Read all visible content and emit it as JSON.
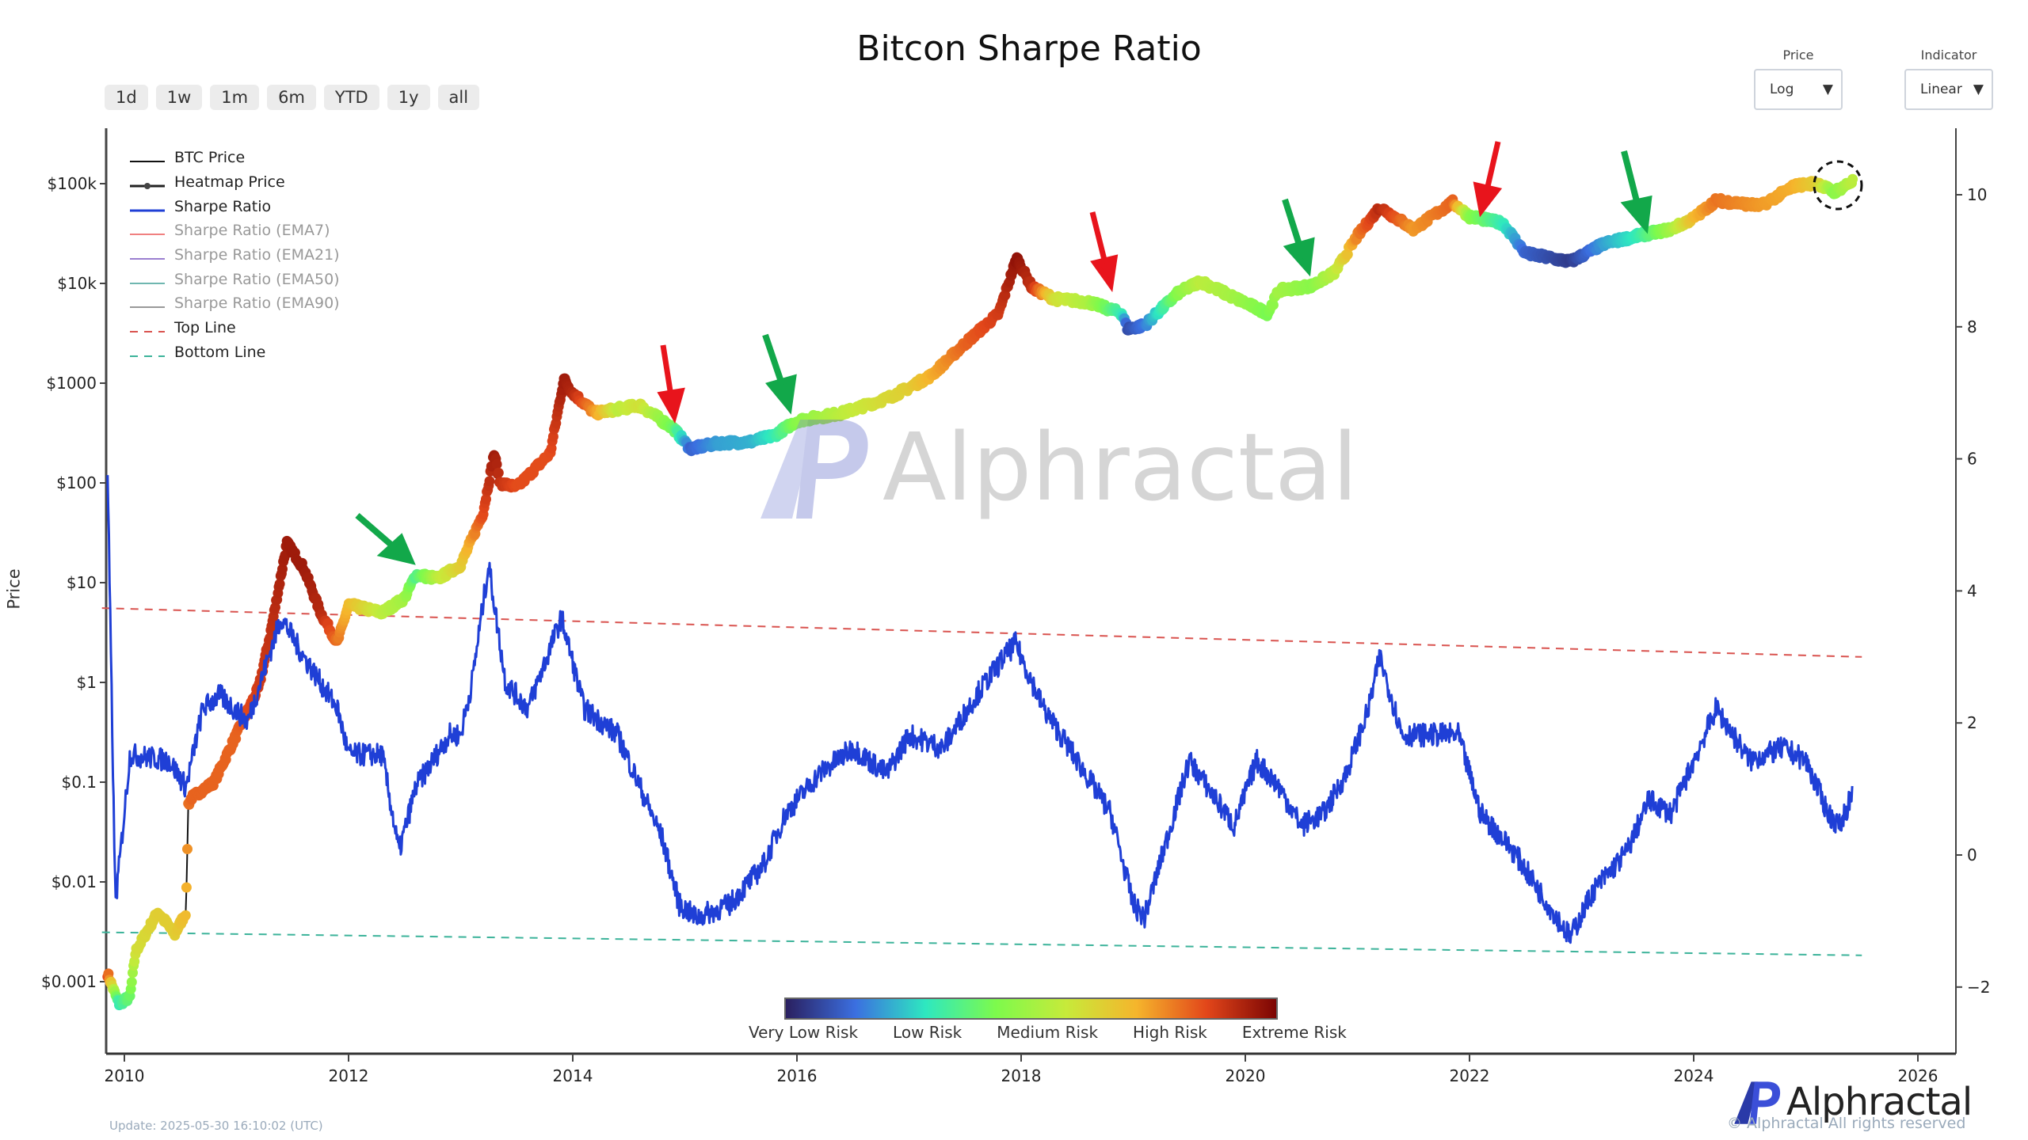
{
  "header": {
    "title": "Bitcon Sharpe Ratio"
  },
  "range_buttons": [
    "1d",
    "1w",
    "1m",
    "6m",
    "YTD",
    "1y",
    "all"
  ],
  "controls": {
    "price": {
      "label": "Price",
      "value": "Log"
    },
    "indicator": {
      "label": "Indicator",
      "value": "Linear"
    }
  },
  "legend": [
    {
      "label": "BTC Price",
      "color": "#111111",
      "style": "solid",
      "active": true
    },
    {
      "label": "Heatmap Price",
      "color": "#222222",
      "style": "marker",
      "active": true
    },
    {
      "label": "Sharpe Ratio",
      "color": "#1f3fd6",
      "style": "solid",
      "active": true
    },
    {
      "label": "Sharpe Ratio (EMA7)",
      "color": "#f08080",
      "style": "solid",
      "active": false
    },
    {
      "label": "Sharpe Ratio (EMA21)",
      "color": "#9b7fd0",
      "style": "solid",
      "active": false
    },
    {
      "label": "Sharpe Ratio (EMA50)",
      "color": "#6fb7b0",
      "style": "solid",
      "active": false
    },
    {
      "label": "Sharpe Ratio (EMA90)",
      "color": "#999999",
      "style": "solid",
      "active": false
    },
    {
      "label": "Top Line",
      "color": "#d9534f",
      "style": "dash",
      "active": true
    },
    {
      "label": "Bottom Line",
      "color": "#3cb39a",
      "style": "dash",
      "active": true
    }
  ],
  "footer": {
    "update": "Update: 2025-05-30 16:10:02 (UTC)",
    "copyright": "© Alphractal All rights reserved",
    "brand": "Alphractal"
  },
  "chart_data": {
    "type": "line",
    "title": "Bitcon Sharpe Ratio",
    "ylabel": "Price",
    "y_left": {
      "scale": "log",
      "ticks": [
        "$0.001",
        "$0.01",
        "$0.1",
        "$1",
        "$10",
        "$100",
        "$1000",
        "$10k",
        "$100k"
      ],
      "tick_values": [
        0.001,
        0.01,
        0.1,
        1,
        10,
        100,
        1000,
        10000,
        100000
      ]
    },
    "y_right": {
      "scale": "linear",
      "ticks": [
        "−2",
        "0",
        "2",
        "4",
        "6",
        "8",
        "10"
      ],
      "tick_values": [
        -2,
        0,
        2,
        4,
        6,
        8,
        10
      ]
    },
    "x_ticks": [
      "2010",
      "2012",
      "2014",
      "2016",
      "2018",
      "2020",
      "2022",
      "2024",
      "2026"
    ],
    "x_tick_values": [
      2010,
      2012,
      2014,
      2016,
      2018,
      2020,
      2022,
      2024,
      2026
    ],
    "colorbar_labels": [
      "Very Low Risk",
      "Low Risk",
      "Medium Risk",
      "High Risk",
      "Extreme Risk"
    ],
    "colorscale": [
      "#2a1f5e",
      "#3b6fe0",
      "#2ee8c0",
      "#7dfa4c",
      "#c7ea3a",
      "#f5b52c",
      "#e2461a",
      "#7a0403"
    ],
    "price_series": {
      "name": "BTC Price / Heatmap Price",
      "points": [
        [
          2009.85,
          0.0012,
          0.85
        ],
        [
          2009.95,
          0.0006,
          0.3
        ],
        [
          2010.05,
          0.0007,
          0.4
        ],
        [
          2010.1,
          0.002,
          0.6
        ],
        [
          2010.3,
          0.005,
          0.65
        ],
        [
          2010.45,
          0.003,
          0.65
        ],
        [
          2010.55,
          0.005,
          0.7
        ],
        [
          2010.57,
          0.06,
          0.8
        ],
        [
          2010.6,
          0.07,
          0.82
        ],
        [
          2010.8,
          0.1,
          0.82
        ],
        [
          2011.0,
          0.3,
          0.82
        ],
        [
          2011.2,
          0.9,
          0.88
        ],
        [
          2011.3,
          3,
          0.9
        ],
        [
          2011.45,
          25,
          0.95
        ],
        [
          2011.6,
          14,
          0.95
        ],
        [
          2011.75,
          5,
          0.92
        ],
        [
          2011.9,
          2.5,
          0.8
        ],
        [
          2012.0,
          6,
          0.7
        ],
        [
          2012.3,
          5,
          0.55
        ],
        [
          2012.5,
          7,
          0.5
        ],
        [
          2012.6,
          12,
          0.35
        ],
        [
          2012.8,
          11,
          0.55
        ],
        [
          2013.0,
          15,
          0.65
        ],
        [
          2013.2,
          50,
          0.85
        ],
        [
          2013.3,
          200,
          0.95
        ],
        [
          2013.35,
          100,
          0.9
        ],
        [
          2013.5,
          90,
          0.85
        ],
        [
          2013.8,
          200,
          0.85
        ],
        [
          2013.92,
          1100,
          0.95
        ],
        [
          2014.0,
          800,
          0.92
        ],
        [
          2014.2,
          500,
          0.75
        ],
        [
          2014.4,
          550,
          0.55
        ],
        [
          2014.6,
          600,
          0.6
        ],
        [
          2014.9,
          350,
          0.4
        ],
        [
          2015.05,
          220,
          0.12
        ],
        [
          2015.3,
          250,
          0.2
        ],
        [
          2015.6,
          260,
          0.22
        ],
        [
          2015.8,
          300,
          0.3
        ],
        [
          2016.0,
          420,
          0.45
        ],
        [
          2016.4,
          500,
          0.55
        ],
        [
          2016.8,
          700,
          0.62
        ],
        [
          2017.0,
          900,
          0.65
        ],
        [
          2017.2,
          1200,
          0.72
        ],
        [
          2017.5,
          2500,
          0.82
        ],
        [
          2017.8,
          5000,
          0.88
        ],
        [
          2017.96,
          18000,
          0.97
        ],
        [
          2018.1,
          9000,
          0.9
        ],
        [
          2018.3,
          7000,
          0.6
        ],
        [
          2018.6,
          6500,
          0.52
        ],
        [
          2018.9,
          5000,
          0.3
        ],
        [
          2018.95,
          3500,
          0.08
        ],
        [
          2019.1,
          3800,
          0.15
        ],
        [
          2019.4,
          8000,
          0.45
        ],
        [
          2019.6,
          10500,
          0.55
        ],
        [
          2019.9,
          7200,
          0.5
        ],
        [
          2020.2,
          5000,
          0.42
        ],
        [
          2020.3,
          8500,
          0.5
        ],
        [
          2020.6,
          9500,
          0.45
        ],
        [
          2020.8,
          13000,
          0.55
        ],
        [
          2021.0,
          30000,
          0.78
        ],
        [
          2021.2,
          58000,
          0.92
        ],
        [
          2021.5,
          35000,
          0.75
        ],
        [
          2021.85,
          65000,
          0.82
        ],
        [
          2022.0,
          47000,
          0.45
        ],
        [
          2022.3,
          40000,
          0.3
        ],
        [
          2022.5,
          20000,
          0.12
        ],
        [
          2022.9,
          16500,
          0.05
        ],
        [
          2023.2,
          25000,
          0.2
        ],
        [
          2023.5,
          30000,
          0.3
        ],
        [
          2023.8,
          35000,
          0.5
        ],
        [
          2024.0,
          45000,
          0.7
        ],
        [
          2024.2,
          68000,
          0.8
        ],
        [
          2024.6,
          60000,
          0.75
        ],
        [
          2024.9,
          95000,
          0.72
        ],
        [
          2025.1,
          102000,
          0.65
        ],
        [
          2025.25,
          82000,
          0.45
        ],
        [
          2025.42,
          106000,
          0.55
        ]
      ]
    },
    "sharpe_series": {
      "name": "Sharpe Ratio",
      "points": [
        [
          2009.85,
          5.8
        ],
        [
          2009.92,
          -0.75
        ],
        [
          2010.05,
          1.52
        ],
        [
          2010.4,
          1.43
        ],
        [
          2010.55,
          1.03
        ],
        [
          2010.7,
          2.22
        ],
        [
          2010.85,
          2.42
        ],
        [
          2011.1,
          2.02
        ],
        [
          2011.4,
          3.6
        ],
        [
          2011.6,
          3.0
        ],
        [
          2011.9,
          2.22
        ],
        [
          2012.0,
          1.52
        ],
        [
          2012.3,
          1.52
        ],
        [
          2012.45,
          0.04
        ],
        [
          2012.6,
          1.03
        ],
        [
          2012.9,
          1.82
        ],
        [
          2013.0,
          1.82
        ],
        [
          2013.1,
          2.61
        ],
        [
          2013.25,
          4.4
        ],
        [
          2013.4,
          2.61
        ],
        [
          2013.6,
          2.22
        ],
        [
          2013.9,
          3.6
        ],
        [
          2014.1,
          2.22
        ],
        [
          2014.4,
          1.82
        ],
        [
          2014.6,
          1.03
        ],
        [
          2014.8,
          0.24
        ],
        [
          2014.95,
          -0.75
        ],
        [
          2015.1,
          -0.95
        ],
        [
          2015.4,
          -0.75
        ],
        [
          2015.7,
          -0.16
        ],
        [
          2015.9,
          0.63
        ],
        [
          2016.2,
          1.23
        ],
        [
          2016.5,
          1.62
        ],
        [
          2016.8,
          1.23
        ],
        [
          2017.0,
          1.82
        ],
        [
          2017.3,
          1.62
        ],
        [
          2017.6,
          2.42
        ],
        [
          2017.85,
          3.0
        ],
        [
          2017.95,
          3.2
        ],
        [
          2018.2,
          2.22
        ],
        [
          2018.5,
          1.43
        ],
        [
          2018.8,
          0.63
        ],
        [
          2019.0,
          -0.75
        ],
        [
          2019.1,
          -0.95
        ],
        [
          2019.3,
          0.24
        ],
        [
          2019.5,
          1.43
        ],
        [
          2019.9,
          0.44
        ],
        [
          2020.1,
          1.43
        ],
        [
          2020.3,
          1.03
        ],
        [
          2020.5,
          0.44
        ],
        [
          2020.7,
          0.63
        ],
        [
          2020.9,
          1.23
        ],
        [
          2021.1,
          2.22
        ],
        [
          2021.2,
          3.0
        ],
        [
          2021.4,
          1.82
        ],
        [
          2021.7,
          1.82
        ],
        [
          2021.9,
          1.82
        ],
        [
          2022.1,
          0.63
        ],
        [
          2022.4,
          0.04
        ],
        [
          2022.7,
          -0.75
        ],
        [
          2022.9,
          -1.25
        ],
        [
          2023.1,
          -0.55
        ],
        [
          2023.4,
          0.04
        ],
        [
          2023.6,
          0.83
        ],
        [
          2023.8,
          0.63
        ],
        [
          2024.0,
          1.43
        ],
        [
          2024.2,
          2.22
        ],
        [
          2024.5,
          1.43
        ],
        [
          2024.8,
          1.62
        ],
        [
          2025.0,
          1.43
        ],
        [
          2025.2,
          0.63
        ],
        [
          2025.3,
          0.44
        ],
        [
          2025.42,
          0.93
        ]
      ]
    },
    "top_line": {
      "name": "Top Line",
      "start": [
        2009.8,
        3.74
      ],
      "end": [
        2025.5,
        3.0
      ]
    },
    "bottom_line": {
      "name": "Bottom Line",
      "start": [
        2009.8,
        -1.17
      ],
      "end": [
        2025.5,
        -1.52
      ]
    }
  }
}
